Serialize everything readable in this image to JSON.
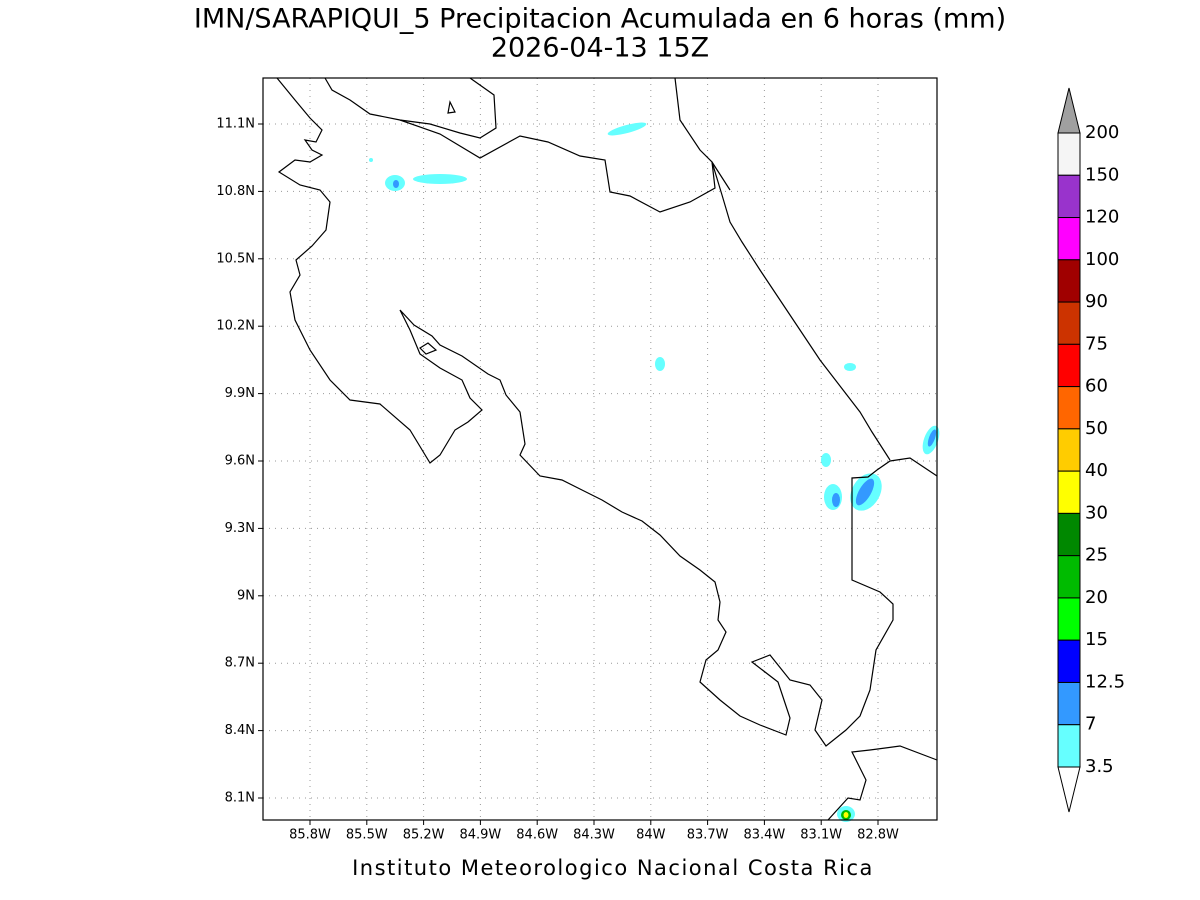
{
  "title": "IMN/SARAPIQUI_5 Precipitacion Acumulada en 6 horas (mm)",
  "subtitle": "2026-04-13 15Z",
  "lon_ticks": [
    "85.8W",
    "85.5W",
    "85.2W",
    "84.9W",
    "84.6W",
    "84.3W",
    "84W",
    "83.7W",
    "83.4W",
    "83.1W",
    "82.8W"
  ],
  "lat_ticks": [
    "11.1N",
    "10.8N",
    "10.5N",
    "10.2N",
    "9.9N",
    "9.6N",
    "9.3N",
    "9N",
    "8.7N",
    "8.4N",
    "8.1N"
  ],
  "colorbar": {
    "levels": [
      200,
      150,
      120,
      100,
      90,
      75,
      60,
      50,
      40,
      30,
      25,
      20,
      15,
      12.5,
      7,
      3.5
    ],
    "colors": [
      "#f5f5f5",
      "#9933cc",
      "#ff00ff",
      "#a00000",
      "#cc3300",
      "#ff0000",
      "#ff6600",
      "#ffcc00",
      "#ffff00",
      "#008800",
      "#00bb00",
      "#00ff00",
      "#0000ff",
      "#3399ff",
      "#66ffff"
    ],
    "over_color": "#a0a0a0",
    "under_color": "#ffffff"
  },
  "footer": "Instituto Meteorologico Nacional Costa Rica"
}
